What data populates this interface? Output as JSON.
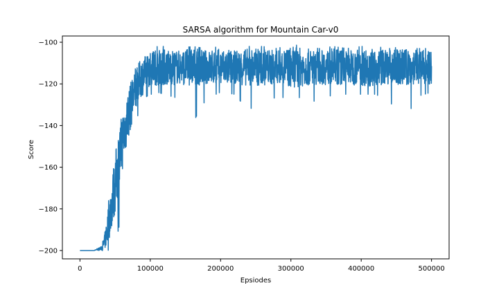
{
  "chart_data": {
    "type": "line",
    "title": "SARSA algorithm for Mountain Car-v0",
    "xlabel": "Epsiodes",
    "ylabel": "Score",
    "xlim": [
      -25000,
      525000
    ],
    "ylim": [
      -204,
      -97
    ],
    "xticks": [
      0,
      100000,
      200000,
      300000,
      400000,
      500000
    ],
    "yticks": [
      -200,
      -180,
      -160,
      -140,
      -120,
      -100
    ],
    "grid": false,
    "legend": "none",
    "series_color": "#1f77b4",
    "series": [
      {
        "x": [
          0,
          10000,
          20000,
          30000,
          35000,
          40000,
          45000,
          50000,
          55000,
          60000,
          65000,
          70000,
          75000,
          80000,
          85000,
          90000,
          95000,
          100000,
          105000,
          110000,
          120000,
          140000,
          160000,
          180000,
          200000,
          220000,
          240000,
          260000,
          280000,
          300000,
          320000,
          340000,
          360000,
          380000,
          400000,
          420000,
          440000,
          460000,
          480000,
          500000
        ],
        "mean": [
          -200,
          -200,
          -200,
          -199,
          -196,
          -188,
          -178,
          -168,
          -158,
          -148,
          -140,
          -133,
          -127,
          -122,
          -118,
          -116,
          -114,
          -113,
          -112,
          -112,
          -112,
          -112,
          -112,
          -112,
          -112,
          -112,
          -112,
          -112,
          -112,
          -112,
          -112,
          -112,
          -112,
          -112,
          -112,
          -112,
          -112,
          -112,
          -112,
          -112
        ],
        "min": [
          -200,
          -200,
          -200,
          -200,
          -200,
          -200,
          -198,
          -195,
          -190,
          -178,
          -170,
          -160,
          -150,
          -138,
          -132,
          -128,
          -126,
          -125,
          -125,
          -124,
          -125,
          -127,
          -139,
          -127,
          -124,
          -125,
          -133,
          -126,
          -127,
          -126,
          -127,
          -129,
          -125,
          -125,
          -125,
          -125,
          -128,
          -139,
          -126,
          -124
        ],
        "max": [
          -200,
          -200,
          -200,
          -198,
          -192,
          -178,
          -165,
          -152,
          -140,
          -132,
          -126,
          -120,
          -115,
          -112,
          -108,
          -106,
          -105,
          -104,
          -103,
          -102,
          -102,
          -103,
          -102,
          -103,
          -102,
          -103,
          -102,
          -102,
          -103,
          -101,
          -102,
          -103,
          -102,
          -103,
          -102,
          -102,
          -103,
          -102,
          -103,
          -103
        ]
      }
    ]
  }
}
